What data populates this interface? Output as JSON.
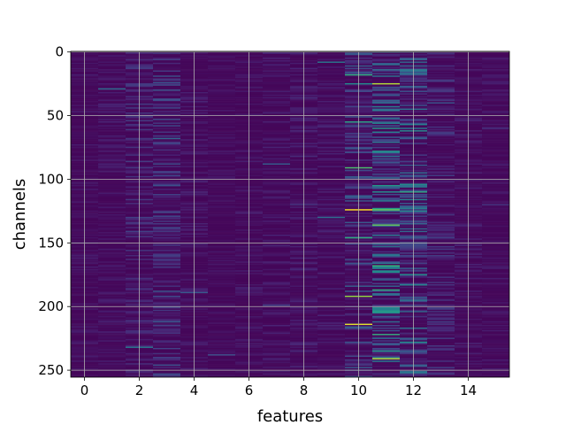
{
  "chart_data": {
    "type": "heatmap",
    "title": "",
    "xlabel": "features",
    "ylabel": "channels",
    "xlim": [
      -0.5,
      15.5
    ],
    "ylim": [
      255.5,
      -0.5
    ],
    "x_ticks": [
      0,
      2,
      4,
      6,
      8,
      10,
      12,
      14
    ],
    "y_ticks": [
      0,
      50,
      100,
      150,
      200,
      250
    ],
    "grid": true,
    "colormap": "viridis",
    "n_rows": 256,
    "n_cols": 16,
    "column_activity": [
      0.04,
      0.05,
      0.1,
      0.14,
      0.05,
      0.03,
      0.04,
      0.05,
      0.06,
      0.05,
      0.16,
      0.3,
      0.28,
      0.1,
      0.05,
      0.04
    ],
    "highlights": [
      {
        "col": 10,
        "row": 124,
        "value": 1.0
      },
      {
        "col": 10,
        "row": 214,
        "value": 0.97
      },
      {
        "col": 10,
        "row": 192,
        "value": 0.88
      },
      {
        "col": 10,
        "row": 91,
        "value": 0.78
      },
      {
        "col": 10,
        "row": 18,
        "value": 0.72
      },
      {
        "col": 10,
        "row": 146,
        "value": 0.72
      },
      {
        "col": 10,
        "row": 55,
        "value": 0.68
      },
      {
        "col": 11,
        "row": 25,
        "value": 0.92
      },
      {
        "col": 11,
        "row": 241,
        "value": 0.92
      },
      {
        "col": 11,
        "row": 124,
        "value": 0.82
      },
      {
        "col": 11,
        "row": 136,
        "value": 0.82
      },
      {
        "col": 11,
        "row": 168,
        "value": 0.75
      },
      {
        "col": 11,
        "row": 187,
        "value": 0.72
      },
      {
        "col": 11,
        "row": 222,
        "value": 0.72
      },
      {
        "col": 11,
        "row": 60,
        "value": 0.65
      },
      {
        "col": 11,
        "row": 110,
        "value": 0.62
      },
      {
        "col": 9,
        "row": 8,
        "value": 0.5
      },
      {
        "col": 9,
        "row": 130,
        "value": 0.45
      },
      {
        "col": 1,
        "row": 29,
        "value": 0.45
      },
      {
        "col": 3,
        "row": 68,
        "value": 0.42
      }
    ]
  }
}
